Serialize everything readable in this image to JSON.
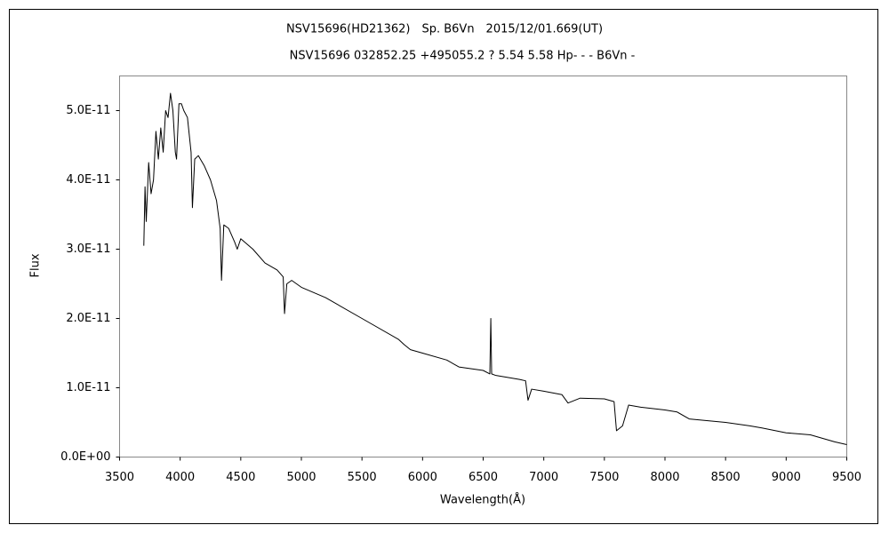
{
  "chart_data": {
    "type": "line",
    "title": "NSV15696(HD21362)　Sp. B6Vn　2015/12/01.669(UT)",
    "subtitle": "NSV15696 032852.25 +495055.2 ? 5.54 5.58 Hp- - - B6Vn -",
    "xlabel": "Wavelength(Å)",
    "ylabel": "Flux",
    "color": "#000000",
    "grid": false,
    "xlim": [
      3500,
      9500
    ],
    "xticks": [
      3500,
      4000,
      4500,
      5000,
      5500,
      6000,
      6500,
      7000,
      7500,
      8000,
      8500,
      9000,
      9500
    ],
    "ylim": [
      0,
      5.5e-11
    ],
    "yticks": [
      {
        "value": 0,
        "label": "0.0E+00"
      },
      {
        "value": 1e-11,
        "label": "1.0E-11"
      },
      {
        "value": 2e-11,
        "label": "2.0E-11"
      },
      {
        "value": 3e-11,
        "label": "3.0E-11"
      },
      {
        "value": 4e-11,
        "label": "4.0E-11"
      },
      {
        "value": 5e-11,
        "label": "5.0E-11"
      }
    ],
    "x": [
      3700,
      3710,
      3720,
      3740,
      3760,
      3780,
      3800,
      3820,
      3840,
      3860,
      3880,
      3900,
      3920,
      3940,
      3960,
      3970,
      3990,
      4010,
      4030,
      4060,
      4090,
      4101,
      4120,
      4150,
      4200,
      4250,
      4300,
      4330,
      4341,
      4360,
      4400,
      4450,
      4471,
      4500,
      4600,
      4700,
      4800,
      4850,
      4861,
      4880,
      4920,
      5000,
      5200,
      5500,
      5800,
      5850,
      5900,
      6000,
      6200,
      6300,
      6500,
      6555,
      6563,
      6570,
      6600,
      6800,
      6850,
      6870,
      6900,
      7000,
      7150,
      7200,
      7300,
      7500,
      7580,
      7600,
      7650,
      7700,
      7800,
      8000,
      8100,
      8200,
      8500,
      8700,
      8800,
      9000,
      9200,
      9400,
      9500
    ],
    "values": [
      3.05e-11,
      3.9e-11,
      3.4e-11,
      4.25e-11,
      3.8e-11,
      4e-11,
      4.7e-11,
      4.3e-11,
      4.75e-11,
      4.4e-11,
      5e-11,
      4.9e-11,
      5.25e-11,
      5e-11,
      4.4e-11,
      4.3e-11,
      5.1e-11,
      5.1e-11,
      5e-11,
      4.9e-11,
      4.4e-11,
      3.6e-11,
      4.3e-11,
      4.35e-11,
      4.2e-11,
      4e-11,
      3.7e-11,
      3.3e-11,
      2.55e-11,
      3.35e-11,
      3.3e-11,
      3.1e-11,
      3e-11,
      3.15e-11,
      3e-11,
      2.8e-11,
      2.7e-11,
      2.6e-11,
      2.07e-11,
      2.5e-11,
      2.55e-11,
      2.45e-11,
      2.3e-11,
      2e-11,
      1.7e-11,
      1.62e-11,
      1.55e-11,
      1.5e-11,
      1.4e-11,
      1.3e-11,
      1.25e-11,
      1.2e-11,
      2e-11,
      1.2e-11,
      1.18e-11,
      1.12e-11,
      1.1e-11,
      8.2e-12,
      9.8e-12,
      9.5e-12,
      9e-12,
      7.8e-12,
      8.5e-12,
      8.4e-12,
      8e-12,
      3.8e-12,
      4.5e-12,
      7.5e-12,
      7.2e-12,
      6.8e-12,
      6.5e-12,
      5.5e-12,
      5e-12,
      4.5e-12,
      4.2e-12,
      3.5e-12,
      3.2e-12,
      2.2e-12,
      1.8e-12
    ]
  }
}
